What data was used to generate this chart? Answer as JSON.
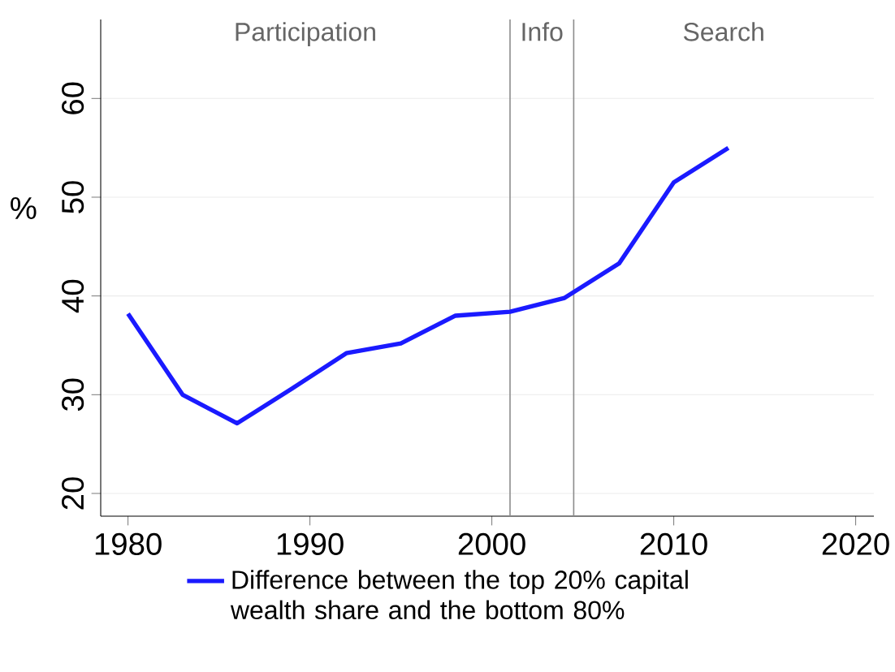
{
  "chart_data": {
    "type": "line",
    "ylabel": "%",
    "x": [
      1980,
      1983,
      1986,
      1989,
      1992,
      1995,
      1998,
      2001,
      2004,
      2007,
      2010,
      2013
    ],
    "series": [
      {
        "name": "Difference between the top 20% capital wealth share and the bottom 80%",
        "color": "#1a1aff",
        "values": [
          38.2,
          30.0,
          27.1,
          30.6,
          34.2,
          35.2,
          38.0,
          38.4,
          39.8,
          43.3,
          51.5,
          55.0
        ]
      }
    ],
    "xlim": [
      1978.5,
      2021
    ],
    "ylim": [
      17.7,
      68
    ],
    "xticks": [
      1980,
      1990,
      2000,
      2010,
      2020
    ],
    "yticks": [
      20,
      30,
      40,
      50,
      60
    ],
    "ref_lines": [
      {
        "axis": "x",
        "value": 2001,
        "color": "#8c8c8c"
      },
      {
        "axis": "x",
        "value": 2004.5,
        "color": "#8c8c8c"
      }
    ],
    "annotations": [
      "Participation",
      "Info",
      "Search"
    ],
    "grid": "y",
    "legend": "bottom"
  }
}
